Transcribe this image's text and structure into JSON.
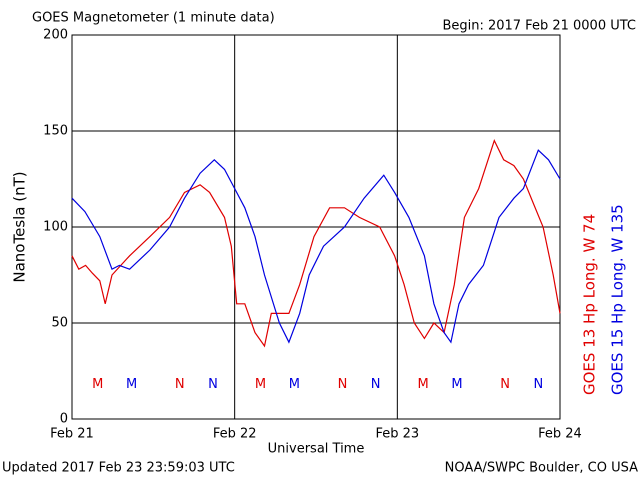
{
  "chart_data": {
    "type": "line",
    "title": "GOES Magnetometer (1 minute data)",
    "subtitle": "Begin:  2017 Feb 21 0000 UTC",
    "y_label": "NanoTesla (nT)",
    "x_label": "Universal Time",
    "footer_left": "Updated 2017 Feb 23 23:59:03 UTC",
    "footer_right": "NOAA/SWPC Boulder, CO USA",
    "xlim": [
      0,
      72
    ],
    "xticks": [
      {
        "value": 0,
        "label": "Feb 21"
      },
      {
        "value": 24,
        "label": "Feb 22"
      },
      {
        "value": 48,
        "label": "Feb 23"
      },
      {
        "value": 72,
        "label": "Feb 24"
      }
    ],
    "ylim": [
      0,
      200
    ],
    "yticks": [
      0,
      50,
      100,
      150,
      200
    ],
    "grid": true,
    "series": [
      {
        "name": "GOES 13 Hp  Long. W 74",
        "color": "#e00000",
        "x": [
          0,
          1,
          2,
          3,
          4.1,
          4.9,
          5.9,
          8.5,
          11.5,
          14.4,
          16.6,
          18.9,
          20.3,
          22.5,
          23.5,
          24.3,
          25.5,
          27,
          28.4,
          29.4,
          30.6,
          32,
          33.6,
          35.7,
          38,
          40.2,
          42.4,
          45.4,
          47.6,
          49,
          50.5,
          52,
          53.4,
          54.9,
          56.4,
          57.9,
          60,
          62.3,
          63.7,
          65.2,
          66.6,
          68.1,
          69.5,
          71,
          72
        ],
        "values": [
          85,
          78,
          80,
          76,
          72,
          60,
          75,
          85,
          95,
          105,
          118,
          122,
          118,
          105,
          90,
          60,
          60,
          45,
          38,
          55,
          55,
          55,
          70,
          95,
          110,
          110,
          105,
          100,
          85,
          70,
          50,
          42,
          50,
          45,
          70,
          105,
          120,
          145,
          135,
          132,
          125,
          112,
          100,
          75,
          55
        ]
      },
      {
        "name": "GOES 15 Hp  Long. W 135",
        "color": "#0000e0",
        "x": [
          0,
          1.9,
          4.1,
          5.9,
          7,
          8.5,
          11.5,
          14.4,
          16.6,
          18.9,
          21,
          22.5,
          24,
          25.5,
          27,
          28.4,
          30.6,
          32,
          33.6,
          35,
          37.1,
          40.2,
          43.1,
          46,
          47.6,
          49.7,
          52,
          53.4,
          54.9,
          55.9,
          57.1,
          58.5,
          60.7,
          63,
          65.2,
          66.6,
          68.8,
          70.3,
          72
        ],
        "values": [
          115,
          108,
          95,
          78,
          80,
          78,
          88,
          100,
          115,
          128,
          135,
          130,
          120,
          110,
          95,
          75,
          50,
          40,
          55,
          75,
          90,
          100,
          115,
          127,
          118,
          105,
          85,
          60,
          45,
          40,
          60,
          70,
          80,
          105,
          115,
          120,
          140,
          135,
          125
        ]
      }
    ],
    "annotations": [
      {
        "text": "M",
        "x": 3.8,
        "y": 18,
        "color": "#e00000"
      },
      {
        "text": "M",
        "x": 8.8,
        "y": 18,
        "color": "#0000e0"
      },
      {
        "text": "N",
        "x": 15.9,
        "y": 18,
        "color": "#e00000"
      },
      {
        "text": "N",
        "x": 20.8,
        "y": 18,
        "color": "#0000e0"
      },
      {
        "text": "M",
        "x": 27.8,
        "y": 18,
        "color": "#e00000"
      },
      {
        "text": "M",
        "x": 32.8,
        "y": 18,
        "color": "#0000e0"
      },
      {
        "text": "N",
        "x": 39.9,
        "y": 18,
        "color": "#e00000"
      },
      {
        "text": "N",
        "x": 44.8,
        "y": 18,
        "color": "#0000e0"
      },
      {
        "text": "M",
        "x": 51.8,
        "y": 18,
        "color": "#e00000"
      },
      {
        "text": "M",
        "x": 56.8,
        "y": 18,
        "color": "#0000e0"
      },
      {
        "text": "N",
        "x": 63.9,
        "y": 18,
        "color": "#e00000"
      },
      {
        "text": "N",
        "x": 68.8,
        "y": 18,
        "color": "#0000e0"
      }
    ]
  }
}
